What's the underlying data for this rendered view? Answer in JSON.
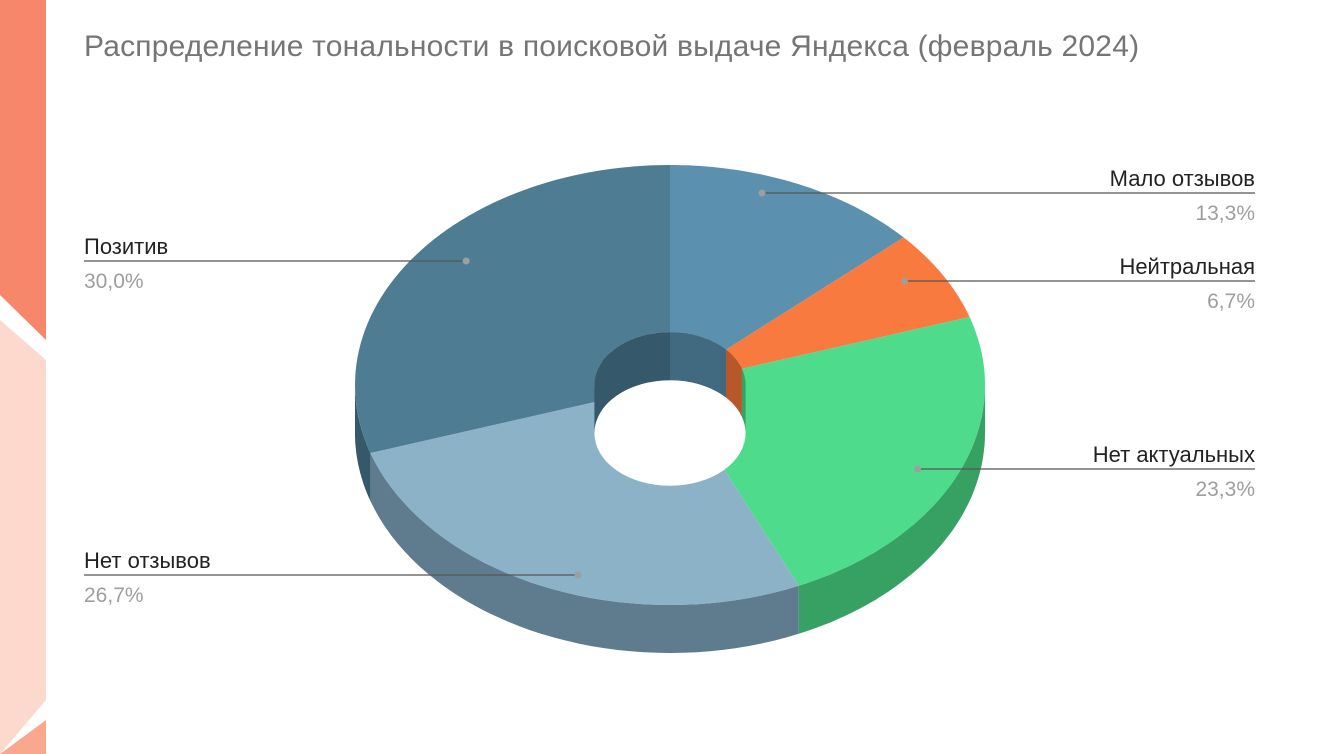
{
  "chart_data": {
    "type": "pie",
    "variant": "3d-donut",
    "title": "Распределение тональности в поисковой выдаче Яндекса (февраль 2024)",
    "slices": [
      {
        "label": "Мало отзывов",
        "value": 13.3,
        "value_label": "13,3%",
        "color": "#5b90ae",
        "side_color": "#41697f"
      },
      {
        "label": "Нейтральная",
        "value": 6.7,
        "value_label": "6,7%",
        "color": "#f97a3f",
        "side_color": "#b8572a"
      },
      {
        "label": "Нет актуальных",
        "value": 23.3,
        "value_label": "23,3%",
        "color": "#4fdb8c",
        "side_color": "#37a063"
      },
      {
        "label": "Нет отзывов",
        "value": 26.7,
        "value_label": "26,7%",
        "color": "#8cb2c7",
        "side_color": "#5e7c8d"
      },
      {
        "label": "Позитив",
        "value": 30.0,
        "value_label": "30,0%",
        "color": "#4e7d93",
        "side_color": "#35586a"
      }
    ],
    "legend": "outside-labels-with-leader-lines"
  },
  "decor": {
    "accent_colors": [
      "#f57a5d",
      "#fbb9a7",
      "#fde3da"
    ]
  }
}
